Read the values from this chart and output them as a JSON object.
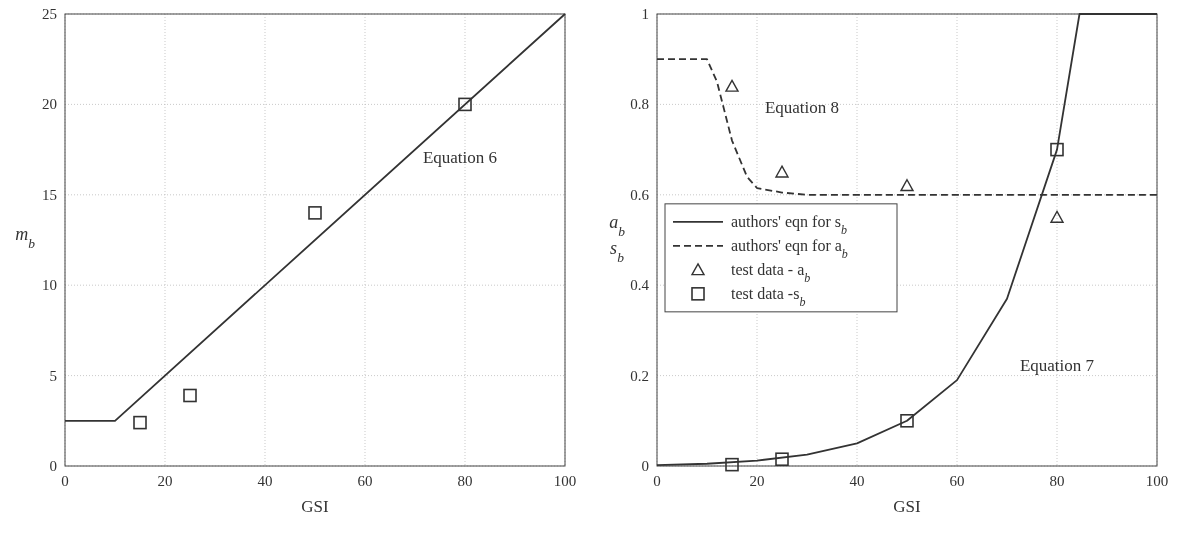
{
  "chart_data": [
    {
      "type": "line",
      "xlabel": "GSI",
      "ylabel": "m$_{b}$",
      "xlim": [
        0,
        100
      ],
      "xticks": [
        0,
        20,
        40,
        60,
        80,
        100
      ],
      "ylim": [
        0,
        25
      ],
      "yticks": [
        0,
        5,
        10,
        15,
        20,
        25
      ],
      "grid": true,
      "legend": false,
      "annotations": [
        "Equation 6"
      ],
      "series": [
        {
          "type": "line",
          "color": "#333333",
          "line_style": "solid",
          "marker": "none",
          "x": [
            0,
            10,
            100
          ],
          "values": [
            2.5,
            2.5,
            25
          ]
        },
        {
          "type": "scatter",
          "color": "#333333",
          "marker": "square",
          "x": [
            15,
            25,
            50,
            80
          ],
          "values": [
            2.4,
            3.9,
            14,
            20
          ]
        }
      ]
    },
    {
      "type": "line",
      "xlabel": "GSI",
      "ylabel": "a$_{b}$ s$_{b}$",
      "xlim": [
        0,
        100
      ],
      "xticks": [
        0,
        20,
        40,
        60,
        80,
        100
      ],
      "ylim": [
        0,
        1
      ],
      "yticks": [
        0,
        0.2,
        0.4,
        0.6,
        0.8,
        1
      ],
      "grid": true,
      "legend": "left",
      "annotations": [
        "Equation 8",
        "Equation 7"
      ],
      "series": [
        {
          "type": "line",
          "name": "authors' eqn for s$_{b}$",
          "color": "#333333",
          "line_style": "solid",
          "marker": "none",
          "x": [
            0,
            10,
            20,
            30,
            40,
            50,
            60,
            70,
            80,
            84.5,
            100
          ],
          "values": [
            0.002,
            0.005,
            0.012,
            0.025,
            0.05,
            0.1,
            0.19,
            0.37,
            0.7,
            1,
            1
          ]
        },
        {
          "type": "line",
          "name": "authors' eqn for a$_{b}$",
          "color": "#333333",
          "line_style": "dashed",
          "marker": "none",
          "x": [
            0,
            10,
            12,
            15,
            18,
            20,
            25,
            30,
            100
          ],
          "values": [
            0.9,
            0.9,
            0.85,
            0.72,
            0.64,
            0.615,
            0.605,
            0.6,
            0.6
          ]
        },
        {
          "type": "scatter",
          "name": "test data - a$_{b}$",
          "color": "#333333",
          "marker": "triangle",
          "x": [
            15,
            25,
            50,
            80
          ],
          "values": [
            0.84,
            0.65,
            0.62,
            0.55
          ]
        },
        {
          "type": "scatter",
          "name": "test data -s$_{b}$",
          "color": "#333333",
          "marker": "square",
          "x": [
            15,
            25,
            50,
            80
          ],
          "values": [
            0.003,
            0.015,
            0.1,
            0.7
          ]
        }
      ]
    }
  ]
}
